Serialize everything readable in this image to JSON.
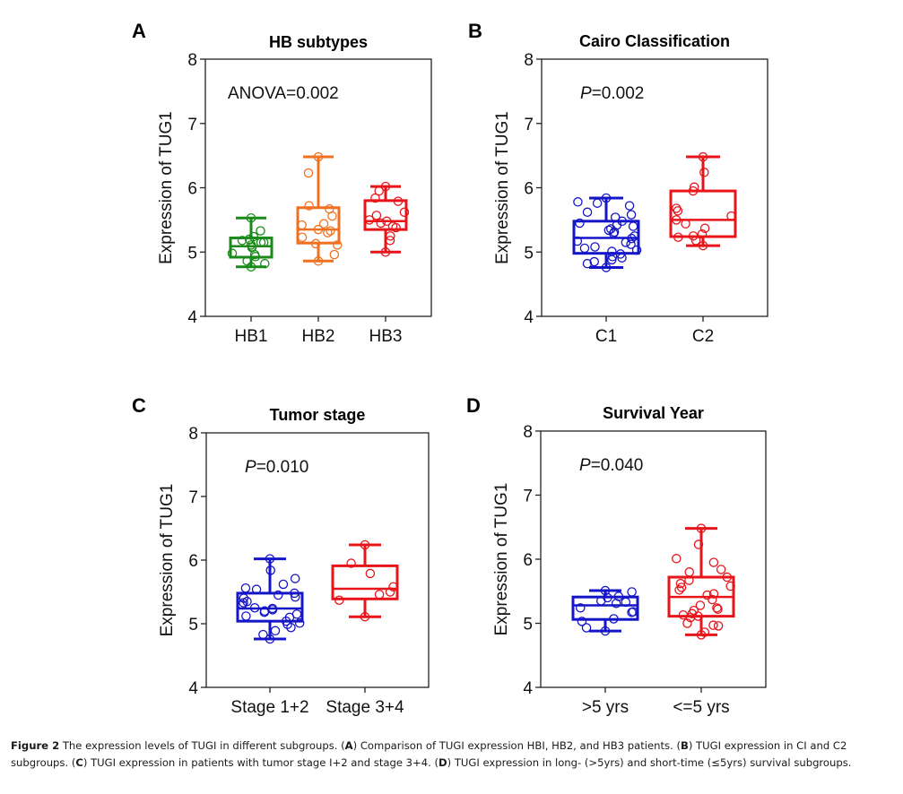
{
  "figure": {
    "caption": {
      "label": "Figure 2",
      "text_parts": [
        {
          "t": " The expression levels of TUGI in different subgroups. (",
          "b": false
        },
        {
          "t": "A",
          "b": true
        },
        {
          "t": ") Comparison of TUGI expression HBI, HB2, and HB3 patients. (",
          "b": false
        },
        {
          "t": "B",
          "b": true
        },
        {
          "t": ") TUGI expression in CI and C2 subgroups. (",
          "b": false
        },
        {
          "t": "C",
          "b": true
        },
        {
          "t": ") TUGI expression in patients with tumor stage I+2 and stage 3+4. (",
          "b": false
        },
        {
          "t": "D",
          "b": true
        },
        {
          "t": ") TUGI expression in long- (>5yrs) and short-time (≤5yrs) survival subgroups.",
          "b": false
        }
      ]
    }
  },
  "chart_data": [
    {
      "type": "box",
      "panel": "A",
      "title": "HB subtypes",
      "annotation": {
        "prefix": "ANOVA",
        "italic_prefix": false,
        "value": "=0.002"
      },
      "xlabel": "",
      "ylabel": "Expression of TUG1",
      "ylim": [
        4,
        8
      ],
      "yticks": [
        4,
        5,
        6,
        7,
        8
      ],
      "grid": false,
      "categories": [
        "HB1",
        "HB2",
        "HB3"
      ],
      "series": [
        {
          "name": "HB1",
          "color": "#1a8a1a",
          "whisker_low": 4.77,
          "q1": 4.92,
          "median": 5.09,
          "q3": 5.22,
          "whisker_high": 5.53,
          "points": [
            5.53,
            5.33,
            5.24,
            5.2,
            5.18,
            5.15,
            5.15,
            5.11,
            5.08,
            5.07,
            4.98,
            4.96,
            4.93,
            4.86,
            4.82,
            4.77
          ]
        },
        {
          "name": "HB2",
          "color": "#f07020",
          "whisker_low": 4.86,
          "q1": 5.14,
          "median": 5.35,
          "q3": 5.69,
          "whisker_high": 6.48,
          "points": [
            6.48,
            6.23,
            5.72,
            5.67,
            5.56,
            5.44,
            5.42,
            5.35,
            5.33,
            5.3,
            5.23,
            5.13,
            5.11,
            4.96,
            4.86
          ]
        },
        {
          "name": "HB3",
          "color": "#e8141a",
          "whisker_low": 5.0,
          "q1": 5.35,
          "median": 5.48,
          "q3": 5.8,
          "whisker_high": 6.02,
          "points": [
            6.02,
            5.95,
            5.84,
            5.79,
            5.62,
            5.57,
            5.5,
            5.48,
            5.45,
            5.4,
            5.38,
            5.25,
            5.18,
            5.0
          ]
        }
      ]
    },
    {
      "type": "box",
      "panel": "B",
      "title": "Cairo Classification",
      "annotation": {
        "prefix": "P",
        "italic_prefix": true,
        "value": "=0.002"
      },
      "xlabel": "",
      "ylabel": "Expression of TUG1",
      "ylim": [
        4,
        8
      ],
      "yticks": [
        4,
        5,
        6,
        7,
        8
      ],
      "grid": false,
      "categories": [
        "C1",
        "C2"
      ],
      "series": [
        {
          "name": "C1",
          "color": "#1414c8",
          "whisker_low": 4.76,
          "q1": 4.98,
          "median": 5.22,
          "q3": 5.48,
          "whisker_high": 5.84,
          "points": [
            5.84,
            5.78,
            5.76,
            5.72,
            5.62,
            5.58,
            5.54,
            5.48,
            5.45,
            5.42,
            5.4,
            5.36,
            5.34,
            5.31,
            5.29,
            5.25,
            5.21,
            5.17,
            5.15,
            5.12,
            5.08,
            5.06,
            5.03,
            5.01,
            4.97,
            4.93,
            4.91,
            4.88,
            4.85,
            4.82,
            4.76
          ]
        },
        {
          "name": "C2",
          "color": "#e8141a",
          "whisker_low": 5.1,
          "q1": 5.24,
          "median": 5.5,
          "q3": 5.95,
          "whisker_high": 6.48,
          "points": [
            6.48,
            6.24,
            6.01,
            5.95,
            5.68,
            5.64,
            5.56,
            5.5,
            5.44,
            5.37,
            5.28,
            5.25,
            5.23,
            5.18,
            5.1
          ]
        }
      ]
    },
    {
      "type": "box",
      "panel": "C",
      "title": "Tumor stage",
      "annotation": {
        "prefix": "P",
        "italic_prefix": true,
        "value": "=0.010"
      },
      "xlabel": "",
      "ylabel": "Expression of TUG1",
      "ylim": [
        4,
        8
      ],
      "yticks": [
        4,
        5,
        6,
        7,
        8
      ],
      "grid": false,
      "categories": [
        "Stage 1+2",
        "Stage 3+4"
      ],
      "series": [
        {
          "name": "Stage 1+2",
          "color": "#1414c8",
          "whisker_low": 4.76,
          "q1": 5.04,
          "median": 5.24,
          "q3": 5.48,
          "whisker_high": 6.02,
          "points": [
            6.02,
            5.84,
            5.71,
            5.62,
            5.56,
            5.54,
            5.48,
            5.45,
            5.42,
            5.4,
            5.35,
            5.33,
            5.3,
            5.25,
            5.24,
            5.22,
            5.2,
            5.18,
            5.15,
            5.12,
            5.1,
            5.04,
            5.01,
            4.99,
            4.94,
            4.89,
            4.83,
            4.76
          ]
        },
        {
          "name": "Stage 3+4",
          "color": "#e8141a",
          "whisker_low": 5.11,
          "q1": 5.39,
          "median": 5.55,
          "q3": 5.91,
          "whisker_high": 6.24,
          "points": [
            6.24,
            5.95,
            5.79,
            5.58,
            5.5,
            5.46,
            5.37,
            5.11
          ]
        }
      ]
    },
    {
      "type": "box",
      "panel": "D",
      "title": "Survival Year",
      "annotation": {
        "prefix": "P",
        "italic_prefix": true,
        "value": "=0.040"
      },
      "xlabel": "",
      "ylabel": "Expression of TUG1",
      "ylim": [
        4,
        8
      ],
      "yticks": [
        4,
        5,
        6,
        7,
        8
      ],
      "grid": false,
      "categories": [
        ">5 yrs",
        "<=5 yrs"
      ],
      "series": [
        {
          "name": ">5 yrs",
          "color": "#1414c8",
          "whisker_low": 4.88,
          "q1": 5.06,
          "median": 5.28,
          "q3": 5.41,
          "whisker_high": 5.51,
          "points": [
            5.51,
            5.49,
            5.42,
            5.4,
            5.35,
            5.33,
            5.31,
            5.24,
            5.18,
            5.17,
            5.07,
            5.03,
            4.93,
            4.88
          ]
        },
        {
          "name": "<=5 yrs",
          "color": "#e8141a",
          "whisker_low": 4.82,
          "q1": 5.11,
          "median": 5.41,
          "q3": 5.72,
          "whisker_high": 6.48,
          "points": [
            6.48,
            6.23,
            6.01,
            5.95,
            5.84,
            5.8,
            5.72,
            5.67,
            5.62,
            5.58,
            5.56,
            5.52,
            5.46,
            5.44,
            5.37,
            5.28,
            5.24,
            5.22,
            5.2,
            5.15,
            5.13,
            5.11,
            5.09,
            5.0,
            4.97,
            4.96,
            4.86,
            4.82
          ]
        }
      ]
    }
  ]
}
